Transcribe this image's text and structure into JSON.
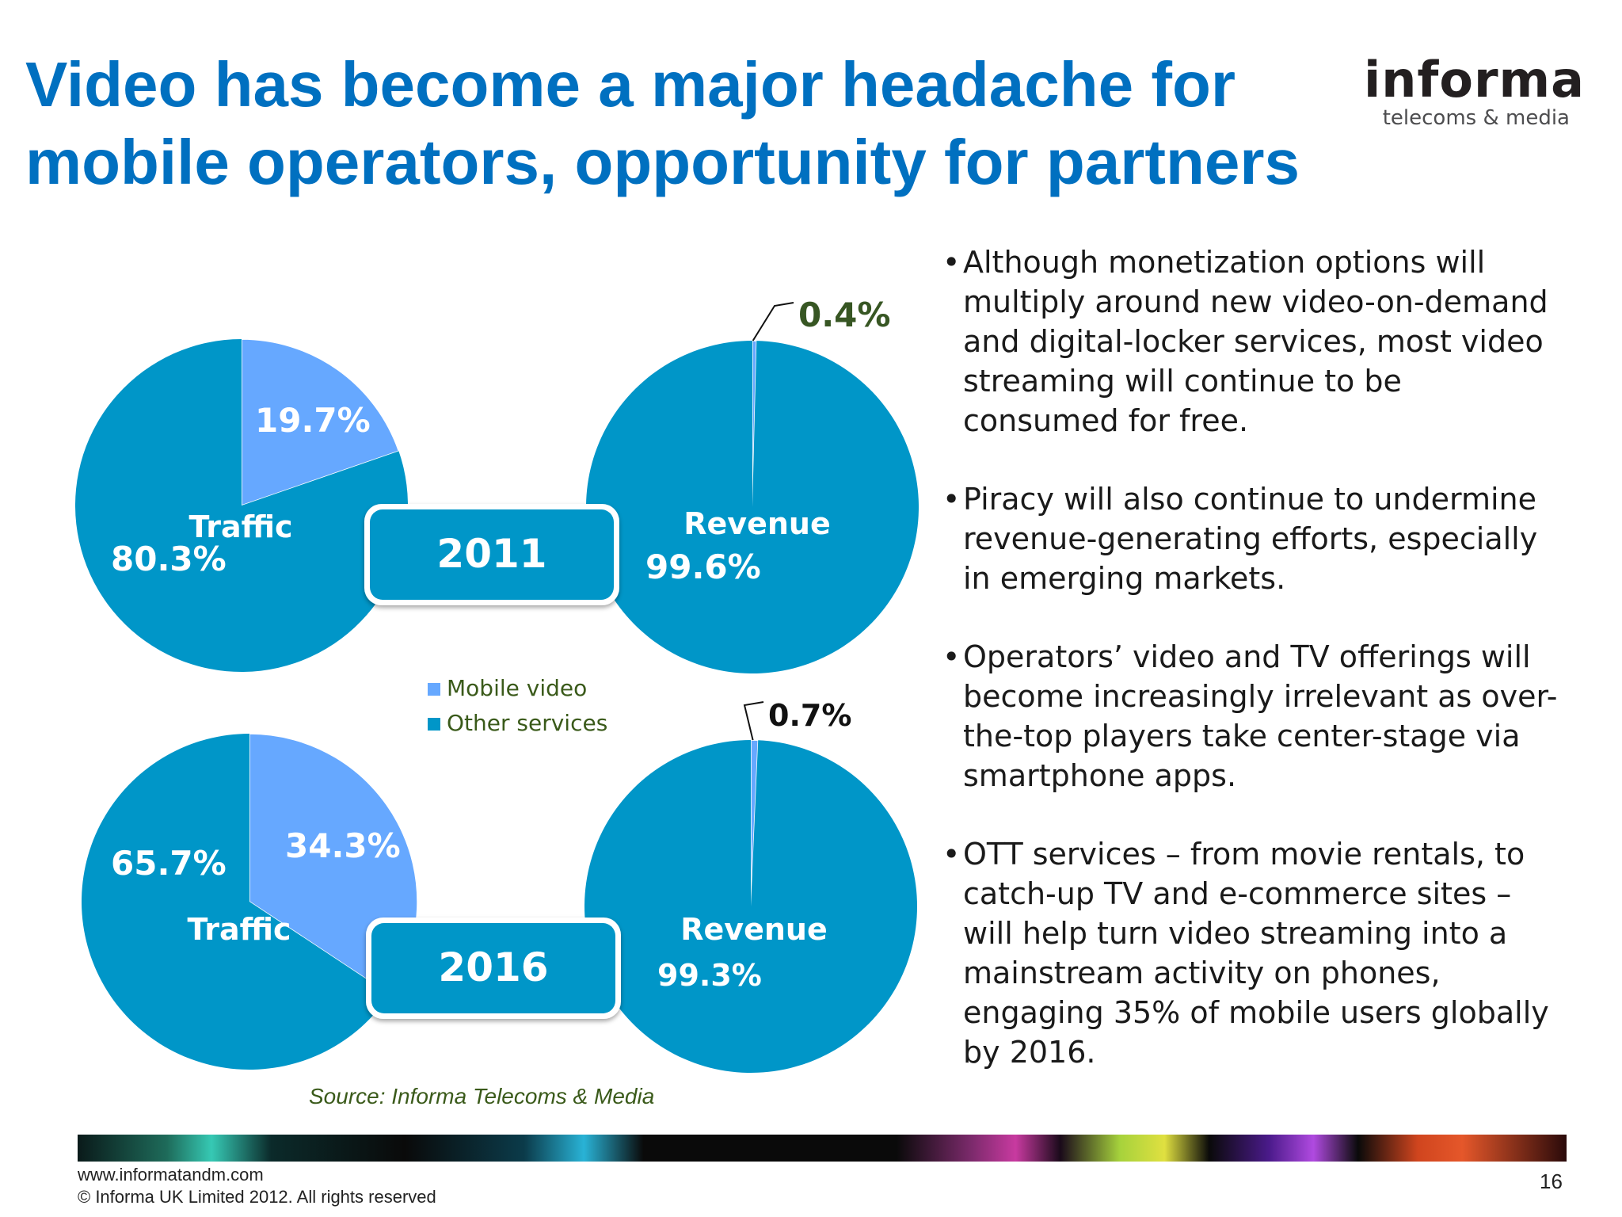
{
  "title": "Video has become a major headache for mobile operators, opportunity for partners",
  "logo": {
    "main": "informa",
    "sub": "telecoms & media"
  },
  "colors": {
    "mobile_video": "#66a8ff",
    "other_services": "#0096c8",
    "title": "#0070c0",
    "callout_dark_green": "#375623"
  },
  "chart_data": [
    {
      "type": "pie",
      "title": "Traffic",
      "year": "2011",
      "series": [
        {
          "name": "Mobile video",
          "value": 19.7,
          "label": "19.7%"
        },
        {
          "name": "Other services",
          "value": 80.3,
          "label": "80.3%"
        }
      ]
    },
    {
      "type": "pie",
      "title": "Revenue",
      "year": "2011",
      "series": [
        {
          "name": "Mobile video",
          "value": 0.4,
          "label": "0.4%"
        },
        {
          "name": "Other services",
          "value": 99.6,
          "label": "99.6%"
        }
      ]
    },
    {
      "type": "pie",
      "title": "Traffic",
      "year": "2016",
      "series": [
        {
          "name": "Mobile video",
          "value": 34.3,
          "label": "34.3%"
        },
        {
          "name": "Other services",
          "value": 65.7,
          "label": "65.7%"
        }
      ]
    },
    {
      "type": "pie",
      "title": "Revenue",
      "year": "2016",
      "series": [
        {
          "name": "Mobile video",
          "value": 0.7,
          "label": "0.7%"
        },
        {
          "name": "Other services",
          "value": 99.3,
          "label": "99.3%"
        }
      ]
    }
  ],
  "legend": {
    "placement": "center",
    "items": [
      "Mobile video",
      "Other services"
    ]
  },
  "year_badges": [
    "2011",
    "2016"
  ],
  "bullets": [
    "Although monetization options will multiply around new video-on-demand and digital-locker services, most video streaming will continue to be consumed for free.",
    "Piracy will also continue to undermine revenue-generating efforts, especially in emerging markets.",
    "Operators’ video and TV offerings will become increasingly irrelevant as over-the-top players take center-stage via smartphone apps.",
    "OTT services – from movie rentals, to catch-up TV and e-commerce sites – will help turn video streaming into a mainstream activity on phones, engaging 35% of mobile users globally by 2016."
  ],
  "source": "Source: Informa Telecoms & Media",
  "footer": {
    "url": "www.informatandm.com",
    "copyright": "© Informa UK Limited 2012. All rights reserved",
    "page": "16"
  }
}
